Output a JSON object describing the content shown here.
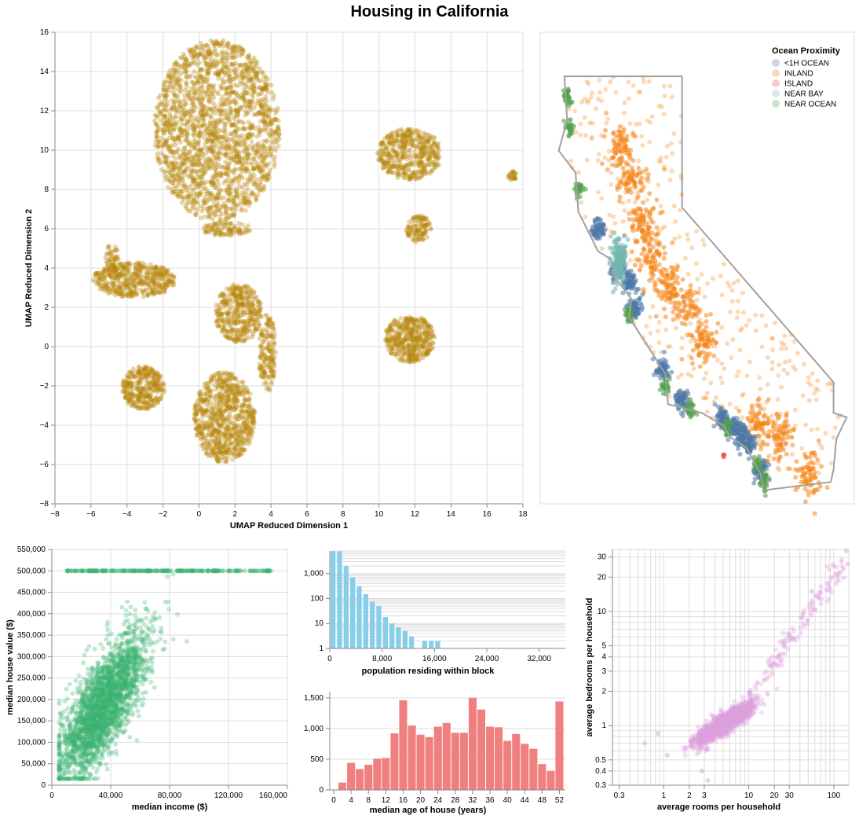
{
  "title": "Housing in California",
  "chart_data": [
    {
      "id": "umap",
      "type": "scatter",
      "xlabel": "UMAP Reduced Dimension 1",
      "ylabel": "UMAP Reduced Dimension 2",
      "xlim": [
        -8,
        18
      ],
      "ylim": [
        -8,
        16
      ],
      "x_ticks": [
        -8,
        -6,
        -4,
        -2,
        0,
        2,
        4,
        6,
        8,
        10,
        12,
        14,
        16,
        18
      ],
      "y_ticks": [
        -8,
        -6,
        -4,
        -2,
        0,
        2,
        4,
        6,
        8,
        10,
        12,
        14,
        16
      ],
      "color": "#b8860b",
      "grid": true,
      "clusters": [
        {
          "cx": 1.0,
          "cy": 11.0,
          "rx": 3.5,
          "ry": 4.6,
          "n": 1900
        },
        {
          "cx": 11.7,
          "cy": 9.8,
          "rx": 1.8,
          "ry": 1.3,
          "n": 450
        },
        {
          "cx": 12.2,
          "cy": 6.0,
          "rx": 0.7,
          "ry": 0.7,
          "n": 110
        },
        {
          "cx": -3.6,
          "cy": 3.4,
          "rx": 2.3,
          "ry": 0.9,
          "n": 450
        },
        {
          "cx": -4.8,
          "cy": 4.4,
          "rx": 0.4,
          "ry": 0.9,
          "n": 60
        },
        {
          "cx": 2.2,
          "cy": 1.7,
          "rx": 1.3,
          "ry": 1.5,
          "n": 380
        },
        {
          "cx": 3.8,
          "cy": -0.3,
          "rx": 0.5,
          "ry": 2.0,
          "n": 160
        },
        {
          "cx": 1.4,
          "cy": -3.6,
          "rx": 1.7,
          "ry": 2.3,
          "n": 750
        },
        {
          "cx": -3.1,
          "cy": -2.1,
          "rx": 1.2,
          "ry": 1.1,
          "n": 320
        },
        {
          "cx": 11.7,
          "cy": 0.4,
          "rx": 1.4,
          "ry": 1.2,
          "n": 420
        },
        {
          "cx": 1.5,
          "cy": 6.0,
          "rx": 1.4,
          "ry": 0.35,
          "n": 90
        },
        {
          "cx": 17.4,
          "cy": 8.7,
          "rx": 0.25,
          "ry": 0.25,
          "n": 25
        }
      ]
    },
    {
      "id": "map",
      "type": "scatter",
      "legend_title": "Ocean Proximity",
      "legend_position": "top-right",
      "categories": [
        {
          "name": "<1H OCEAN",
          "color": "#4c78a8"
        },
        {
          "name": "INLAND",
          "color": "#f58518"
        },
        {
          "name": "ISLAND",
          "color": "#e45756"
        },
        {
          "name": "NEAR BAY",
          "color": "#72b7b2"
        },
        {
          "name": "NEAR OCEAN",
          "color": "#54a24b"
        }
      ],
      "xlim": [
        -124.5,
        -114.0
      ],
      "ylim": [
        32.4,
        42.2
      ],
      "outline_color": "#a0a0a0"
    },
    {
      "id": "income_value",
      "type": "scatter",
      "xlabel": "median income ($)",
      "ylabel": "median house value ($)",
      "xlim": [
        0,
        160000
      ],
      "ylim": [
        0,
        550000
      ],
      "x_ticks": [
        0,
        40000,
        80000,
        120000,
        160000
      ],
      "y_ticks": [
        0,
        50000,
        100000,
        150000,
        200000,
        250000,
        300000,
        350000,
        400000,
        450000,
        500000,
        550000
      ],
      "x_tick_labels": [
        "0",
        "40,000",
        "80,000",
        "120,000",
        "160,000"
      ],
      "y_tick_labels": [
        "0",
        "50,000",
        "100,000",
        "150,000",
        "200,000",
        "250,000",
        "300,000",
        "350,000",
        "400,000",
        "450,000",
        "500,000",
        "550,000"
      ],
      "color": "#3cb371",
      "grid": true
    },
    {
      "id": "population_hist",
      "type": "bar",
      "xlabel": "population residing within block",
      "scale": "log",
      "xlim": [
        0,
        36000
      ],
      "ylim": [
        1,
        8000
      ],
      "x_ticks": [
        0,
        8000,
        16000,
        24000,
        32000
      ],
      "x_tick_labels": [
        "0",
        "8,000",
        "16,000",
        "24,000",
        "32,000"
      ],
      "y_ticks": [
        1,
        10,
        100,
        1000
      ],
      "y_tick_labels": [
        "1",
        "10",
        "100",
        "1,000"
      ],
      "bin_width": 1000,
      "bins_start": [
        0,
        1000,
        2000,
        3000,
        4000,
        5000,
        6000,
        7000,
        8000,
        9000,
        10000,
        11000,
        12000,
        13000,
        14000,
        15000,
        16000,
        28000,
        35000
      ],
      "values": [
        7800,
        7800,
        2000,
        700,
        300,
        150,
        75,
        50,
        18,
        10,
        7,
        5,
        3,
        1,
        2,
        2,
        2,
        1,
        1
      ],
      "color": "#87ceeb",
      "grid": true
    },
    {
      "id": "age_hist",
      "type": "bar",
      "xlabel": "median age of house (years)",
      "xlim": [
        0,
        53
      ],
      "ylim": [
        0,
        1600
      ],
      "x_ticks": [
        0,
        4,
        8,
        12,
        16,
        20,
        24,
        28,
        32,
        36,
        40,
        44,
        48,
        52
      ],
      "y_ticks": [
        0,
        500,
        1000,
        1500
      ],
      "y_tick_labels": [
        "0",
        "500",
        "1,000",
        "1,500"
      ],
      "bin_width": 2,
      "bins_start": [
        1,
        3,
        5,
        7,
        9,
        11,
        13,
        15,
        17,
        19,
        21,
        23,
        25,
        27,
        29,
        31,
        33,
        35,
        37,
        39,
        41,
        43,
        45,
        47,
        49,
        51
      ],
      "values": [
        120,
        440,
        340,
        410,
        510,
        520,
        920,
        1460,
        1050,
        900,
        860,
        1030,
        1090,
        930,
        930,
        1500,
        1310,
        1030,
        1020,
        800,
        910,
        750,
        670,
        420,
        310,
        1440
      ],
      "color": "#f08080",
      "grid": true
    },
    {
      "id": "rooms_bedrooms",
      "type": "scatter",
      "xlabel": "average rooms per household",
      "ylabel": "average bedrooms per household",
      "scale": "log-log",
      "xlim": [
        0.25,
        150
      ],
      "ylim": [
        0.3,
        35
      ],
      "x_ticks": [
        0.3,
        1,
        2,
        3,
        10,
        20,
        30,
        100
      ],
      "y_ticks": [
        0.3,
        0.4,
        0.5,
        1,
        2,
        3,
        4,
        5,
        10,
        20,
        30
      ],
      "color": "#dda0dd",
      "grid": true
    }
  ]
}
